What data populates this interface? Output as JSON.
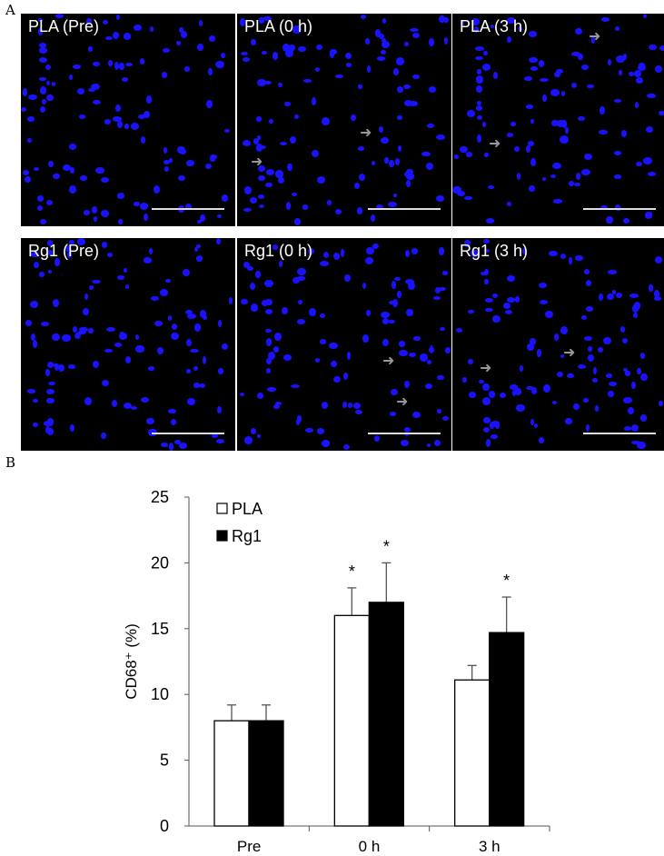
{
  "panel_a_label": "A",
  "panel_b_label": "B",
  "images": [
    {
      "title": "PLA (Pre)",
      "arrows": []
    },
    {
      "title": "PLA (0 h)",
      "arrows": [
        [
          135,
          146
        ],
        [
          15,
          178
        ]
      ]
    },
    {
      "title": "PLA (3 h)",
      "arrows": [
        [
          150,
          40
        ],
        [
          40,
          158
        ]
      ]
    },
    {
      "title": "Rg1 (Pre)",
      "arrows": []
    },
    {
      "title": "Rg1 (0 h)",
      "arrows": [
        [
          160,
          397
        ],
        [
          175,
          442
        ]
      ]
    },
    {
      "title": "Rg1 (3 h)",
      "arrows": [
        [
          30,
          405
        ],
        [
          122,
          388
        ]
      ]
    }
  ],
  "chart_data": {
    "type": "bar",
    "title": "",
    "xlabel": "",
    "ylabel": "CD68⁺ (%)",
    "ylim": [
      0,
      25
    ],
    "yticks": [
      0,
      5,
      10,
      15,
      20,
      25
    ],
    "categories": [
      "Pre",
      "0 h",
      "3 h"
    ],
    "series": [
      {
        "name": "PLA",
        "color": "#ffffff",
        "values": [
          8.0,
          16.0,
          11.1
        ],
        "errors": [
          1.2,
          2.1,
          1.1
        ],
        "significant": [
          false,
          true,
          false
        ]
      },
      {
        "name": "Rg1",
        "color": "#000000",
        "values": [
          8.0,
          17.0,
          14.7
        ],
        "errors": [
          1.2,
          3.0,
          2.7
        ],
        "significant": [
          false,
          true,
          true
        ]
      }
    ],
    "legend_position": "top-left",
    "grid": false,
    "annotation": "*"
  }
}
